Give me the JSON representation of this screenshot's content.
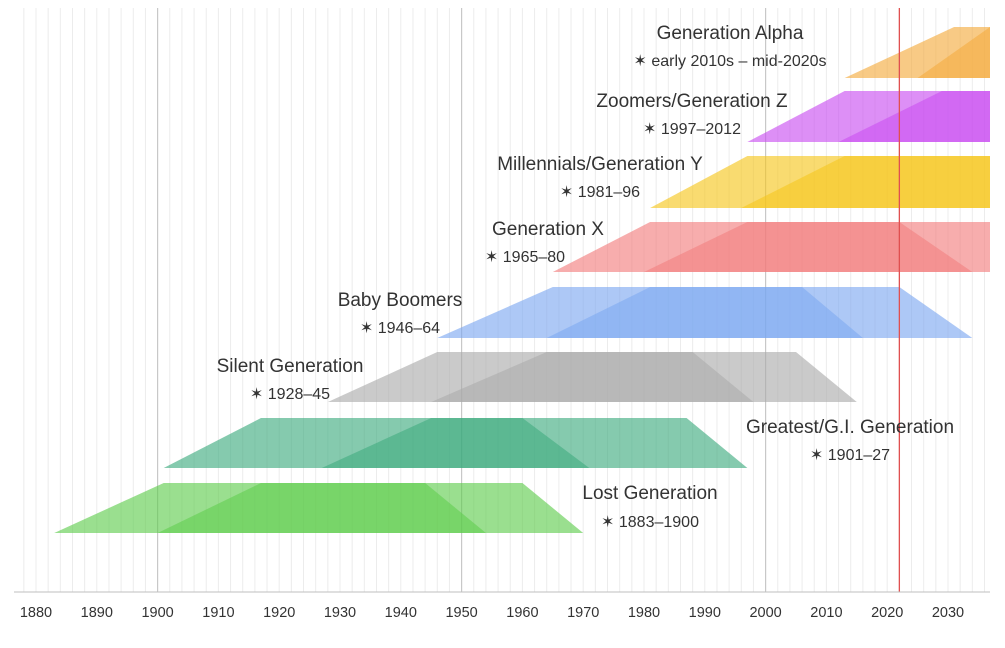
{
  "chart_data": {
    "type": "timeline",
    "x_axis": {
      "range": [
        1876,
        2037
      ],
      "ticks": [
        "1880",
        "1890",
        "1900",
        "1910",
        "1920",
        "1930",
        "1940",
        "1950",
        "1960",
        "1970",
        "1980",
        "1990",
        "2000",
        "2010",
        "2020",
        "2030"
      ],
      "minor_gridlines_every": 2,
      "major_gridlines_every": 50
    },
    "current_year_marker": 2022,
    "marker_color": "#e05050",
    "generations": [
      {
        "name": "Lost Generation",
        "years": "✶ 1883–1900",
        "birth_start": 1883,
        "birth_end": 1900,
        "color": "#5ccc4a",
        "outer": [
          1883,
          1901,
          1960,
          1970
        ],
        "inner": [
          1900,
          1917,
          1944,
          1954
        ]
      },
      {
        "name": "Greatest/G.I. Generation",
        "years": "✶ 1901–27",
        "birth_start": 1901,
        "birth_end": 1927,
        "color": "#3aaa7c",
        "outer": [
          1901,
          1917,
          1987,
          1997
        ],
        "inner": [
          1927,
          1945,
          1960,
          1971
        ]
      },
      {
        "name": "Silent Generation",
        "years": "✶ 1928–45",
        "birth_start": 1928,
        "birth_end": 1945,
        "color": "#aaaaaa",
        "outer": [
          1928,
          1946,
          2005,
          2015
        ],
        "inner": [
          1945,
          1964,
          1988,
          1998
        ]
      },
      {
        "name": "Baby Boomers",
        "years": "✶ 1946–64",
        "birth_start": 1946,
        "birth_end": 1964,
        "color": "#7aa7f0",
        "outer": [
          1946,
          1965,
          2022,
          2034
        ],
        "inner": [
          1964,
          1981,
          2006,
          2016
        ]
      },
      {
        "name": "Generation X",
        "years": "✶ 1965–80",
        "birth_start": 1965,
        "birth_end": 1980,
        "color": "#f27b7b",
        "outer": [
          1965,
          1981,
          2037,
          2037
        ],
        "inner": [
          1980,
          1997,
          2022,
          2034
        ]
      },
      {
        "name": "Millennials/Generation Y",
        "years": "✶ 1981–96",
        "birth_start": 1981,
        "birth_end": 1996,
        "color": "#f5c518",
        "outer": [
          1981,
          1997,
          2037,
          2037
        ],
        "inner": [
          1996,
          2013,
          2037,
          2037
        ]
      },
      {
        "name": "Zoomers/Generation Z",
        "years": "✶ 1997–2012",
        "birth_start": 1997,
        "birth_end": 2012,
        "color": "#c84af0",
        "outer": [
          1997,
          2013,
          2037,
          2037
        ],
        "inner": [
          2012,
          2029,
          2037,
          2037
        ]
      },
      {
        "name": "Generation Alpha",
        "years": "✶ early 2010s – mid-2020s",
        "birth_start": 2013,
        "birth_end": 2025,
        "color": "#f4a93a",
        "outer": [
          2013,
          2031,
          2037,
          2037
        ],
        "inner": [
          2025,
          2040,
          2037,
          2037
        ]
      }
    ]
  }
}
